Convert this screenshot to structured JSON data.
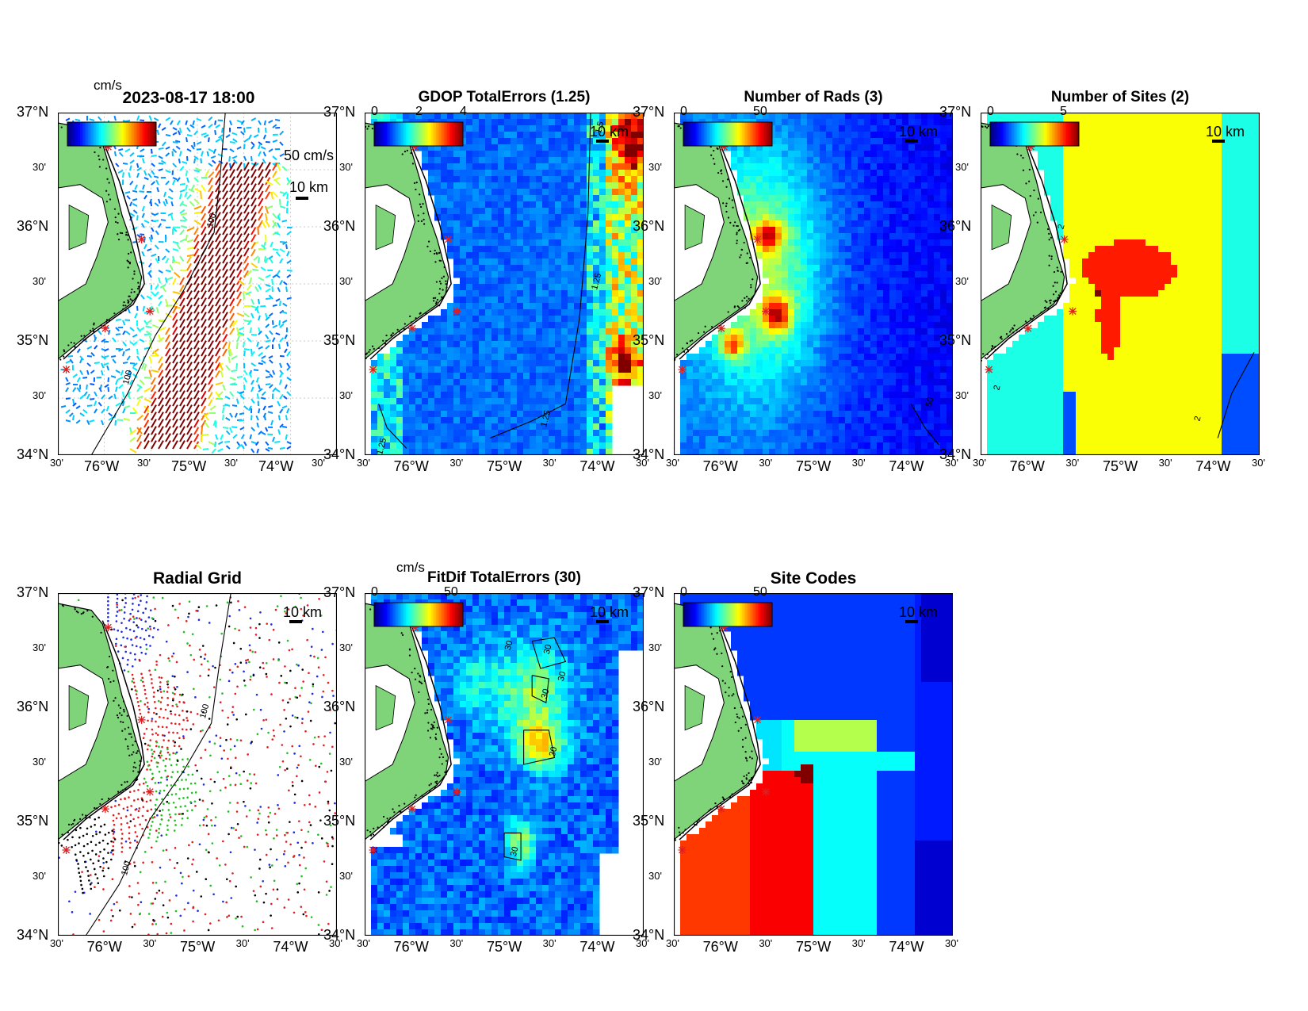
{
  "figure": {
    "timestamp": "2023-08-17 18:00",
    "unit_label": "cm/s",
    "lat_labels": [
      "37°N",
      "30'",
      "36°N",
      "30'",
      "35°N",
      "30'",
      "34°N"
    ],
    "lon_labels": [
      "30'",
      "76°W",
      "30'",
      "75°W",
      "30'",
      "74°W",
      "30'"
    ],
    "scale_bar_label": "10 km",
    "colors": {
      "land": "#7fd47a",
      "sea_blue": "#0a3ad8",
      "site_marker": "#e02020"
    }
  },
  "panels": [
    {
      "id": "currents",
      "title": "2023-08-17 18:00",
      "colorbar_ticks": [],
      "vector_scale_label": "50 cm/s",
      "contour_labels": [
        "100",
        "100"
      ],
      "icon": "vector-field-icon"
    },
    {
      "id": "gdop",
      "title": "GDOP TotalErrors (1.25)",
      "colorbar_ticks": [
        "0",
        "2",
        "4"
      ],
      "contour_labels": [
        "1.25",
        "1.25",
        "1.25",
        "1.5"
      ]
    },
    {
      "id": "nrads",
      "title": "Number of Rads (3)",
      "colorbar_ticks": [
        "0",
        "50"
      ],
      "contour_labels": [
        "50"
      ]
    },
    {
      "id": "nsites",
      "title": "Number of Sites (2)",
      "colorbar_ticks": [
        "0",
        "5"
      ],
      "contour_labels": [
        "2",
        "2",
        "2"
      ]
    },
    {
      "id": "radialgrid",
      "title": "Radial Grid",
      "colorbar_ticks": [],
      "contour_labels": [
        "100",
        "100"
      ]
    },
    {
      "id": "fitdif",
      "title": "FitDif TotalErrors (30)",
      "unit_label": "cm/s",
      "colorbar_ticks": [
        "0",
        "50"
      ],
      "contour_labels": [
        "30",
        "30",
        "30",
        "30",
        "30",
        "30"
      ]
    },
    {
      "id": "sitecodes",
      "title": "Site Codes",
      "colorbar_ticks": [
        "0",
        "50"
      ],
      "contour_labels": []
    }
  ]
}
